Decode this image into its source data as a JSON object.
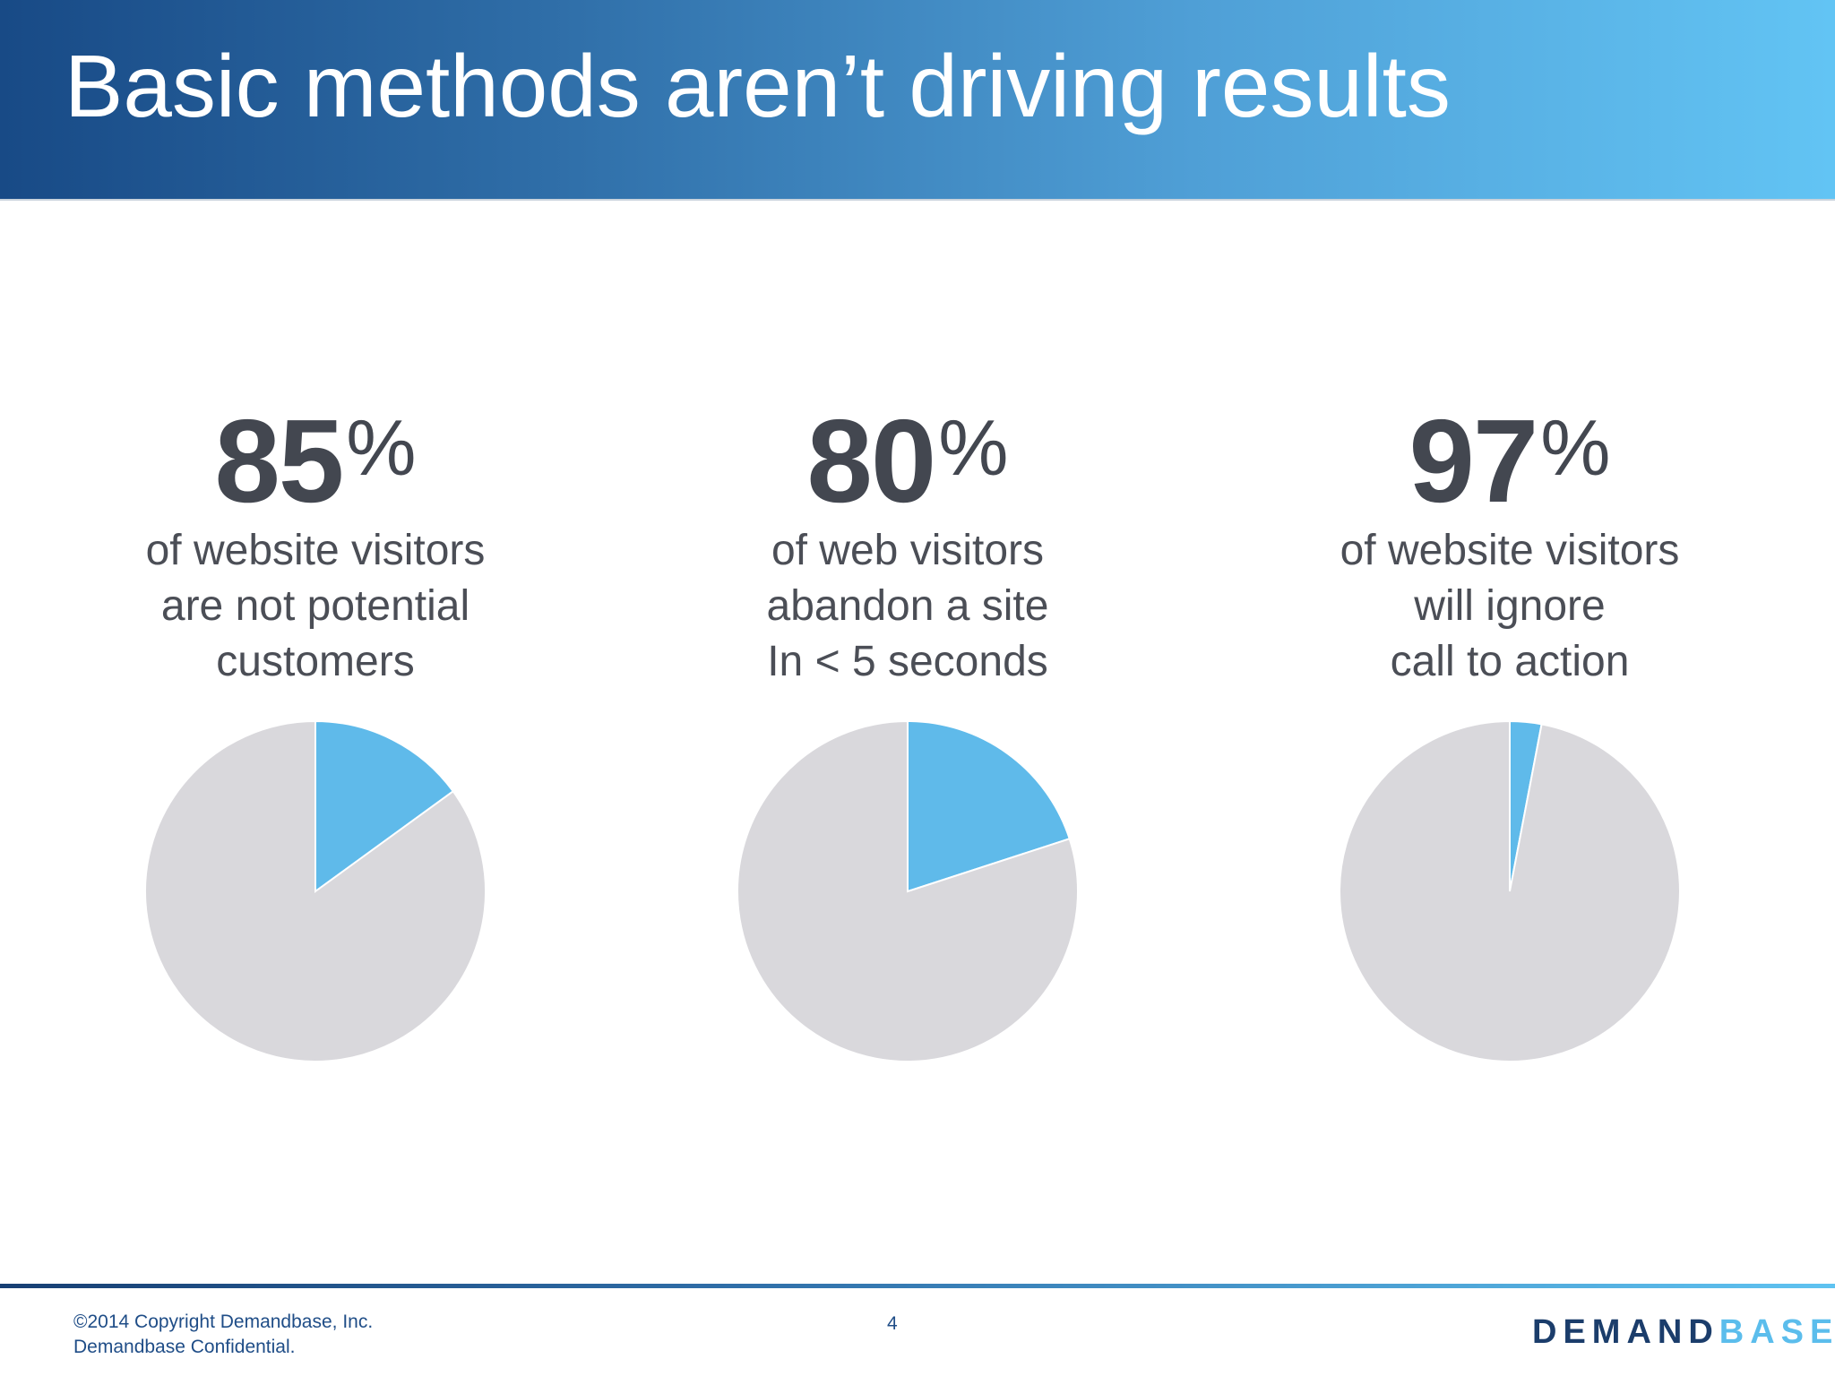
{
  "header": {
    "title": "Basic methods aren’t driving results"
  },
  "colors": {
    "highlight": "#5fbaea",
    "remainder": "#d9d8dc",
    "text": "#434750"
  },
  "stats": [
    {
      "number": "85",
      "percent_sign": "%",
      "desc_lines": [
        "of website visitors",
        "are not potential",
        "customers"
      ]
    },
    {
      "number": "80",
      "percent_sign": "%",
      "desc_lines": [
        "of web visitors",
        "abandon a site",
        "In < 5 seconds"
      ]
    },
    {
      "number": "97",
      "percent_sign": "%",
      "desc_lines": [
        "of website visitors",
        "will ignore",
        "call to action"
      ]
    }
  ],
  "chart_data": [
    {
      "type": "pie",
      "values": [
        15,
        85
      ]
    },
    {
      "type": "pie",
      "values": [
        20,
        80
      ]
    },
    {
      "type": "pie",
      "values": [
        3,
        97
      ]
    }
  ],
  "footer": {
    "copyright_line1": "©2014 Copyright Demandbase, Inc.",
    "copyright_line2": "Demandbase Confidential.",
    "page_number": "4",
    "logo_part1": "DEMAND",
    "logo_part2": "BASE"
  }
}
